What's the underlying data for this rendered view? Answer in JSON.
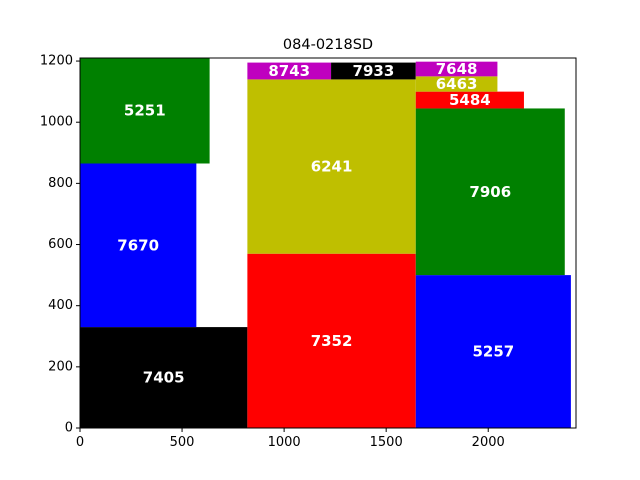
{
  "chart_data": {
    "type": "treemap-rectangles",
    "title": "084-0218SD",
    "xlabel": "",
    "ylabel": "",
    "xlim": [
      0,
      2430
    ],
    "ylim": [
      0,
      1210
    ],
    "xticks": [
      0,
      500,
      1000,
      1500,
      2000
    ],
    "yticks": [
      0,
      200,
      400,
      600,
      800,
      1000,
      1200
    ],
    "grid": false,
    "rects": [
      {
        "label": "7405",
        "x0": 0,
        "x1": 820,
        "y0": 0,
        "y1": 330,
        "color": "#000000"
      },
      {
        "label": "7670",
        "x0": 0,
        "x1": 570,
        "y0": 330,
        "y1": 865,
        "color": "#0000ff"
      },
      {
        "label": "5251",
        "x0": 0,
        "x1": 635,
        "y0": 865,
        "y1": 1215,
        "color": "#008000"
      },
      {
        "label": "7352",
        "x0": 820,
        "x1": 1645,
        "y0": 0,
        "y1": 570,
        "color": "#ff0000"
      },
      {
        "label": "6241",
        "x0": 820,
        "x1": 1645,
        "y0": 570,
        "y1": 1140,
        "color": "#bfbf00"
      },
      {
        "label": "8743",
        "x0": 820,
        "x1": 1230,
        "y0": 1140,
        "y1": 1195,
        "color": "#bf00bf"
      },
      {
        "label": "7933",
        "x0": 1230,
        "x1": 1645,
        "y0": 1140,
        "y1": 1195,
        "color": "#000000"
      },
      {
        "label": "5257",
        "x0": 1645,
        "x1": 2405,
        "y0": 0,
        "y1": 500,
        "color": "#0000ff"
      },
      {
        "label": "7906",
        "x0": 1645,
        "x1": 2375,
        "y0": 500,
        "y1": 1045,
        "color": "#008000"
      },
      {
        "label": "5484",
        "x0": 1645,
        "x1": 2175,
        "y0": 1045,
        "y1": 1100,
        "color": "#ff0000"
      },
      {
        "label": "6463",
        "x0": 1645,
        "x1": 2045,
        "y0": 1100,
        "y1": 1150,
        "color": "#bfbf00"
      },
      {
        "label": "7648",
        "x0": 1645,
        "x1": 2045,
        "y0": 1150,
        "y1": 1198,
        "color": "#bf00bf"
      }
    ]
  }
}
